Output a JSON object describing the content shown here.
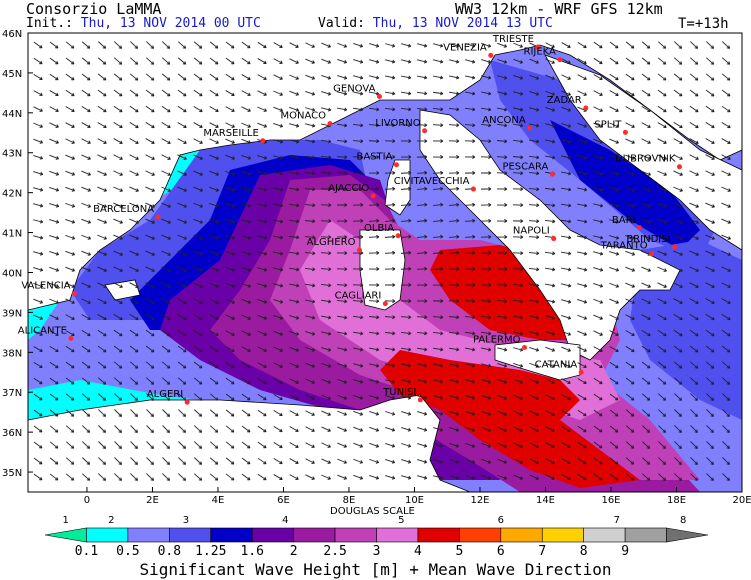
{
  "header": {
    "org": "Consorzio LaMMA",
    "init_label": "Init.:",
    "init_value": "Thu, 13 NOV 2014  00 UTC",
    "valid_label": "Valid:",
    "valid_value": "Thu, 13 NOV 2014  13 UTC",
    "model": "WW3 12km - WRF GFS 12km",
    "forecast_step": "T=+13h"
  },
  "axes": {
    "lat_labels": [
      "46N",
      "45N",
      "44N",
      "43N",
      "42N",
      "41N",
      "40N",
      "39N",
      "38N",
      "37N",
      "36N",
      "35N"
    ],
    "lon_labels": [
      "0",
      "2E",
      "4E",
      "6E",
      "8E",
      "10E",
      "12E",
      "14E",
      "16E",
      "18E",
      "20E"
    ]
  },
  "cities": [
    {
      "name": "TRIESTE",
      "lon": 13.77,
      "lat": 45.65
    },
    {
      "name": "VENEZIA",
      "lon": 12.33,
      "lat": 45.44
    },
    {
      "name": "RIJEKA",
      "lon": 14.44,
      "lat": 45.33
    },
    {
      "name": "GENOVA",
      "lon": 8.93,
      "lat": 44.41
    },
    {
      "name": "MONACO",
      "lon": 7.42,
      "lat": 43.73
    },
    {
      "name": "ZADAR",
      "lon": 15.23,
      "lat": 44.12
    },
    {
      "name": "MARSEILLE",
      "lon": 5.37,
      "lat": 43.3
    },
    {
      "name": "LIVORNO",
      "lon": 10.31,
      "lat": 43.55
    },
    {
      "name": "ANCONA",
      "lon": 13.52,
      "lat": 43.62
    },
    {
      "name": "SPLIT",
      "lon": 16.44,
      "lat": 43.51
    },
    {
      "name": "DUBROVNIK",
      "lon": 18.09,
      "lat": 42.65
    },
    {
      "name": "BASTIA",
      "lon": 9.45,
      "lat": 42.7
    },
    {
      "name": "PESCARA",
      "lon": 14.21,
      "lat": 42.46
    },
    {
      "name": "AJACCIO",
      "lon": 8.74,
      "lat": 41.92
    },
    {
      "name": "CIVITAVECCHIA",
      "lon": 11.8,
      "lat": 42.09
    },
    {
      "name": "BARCELONA",
      "lon": 2.17,
      "lat": 41.39
    },
    {
      "name": "OLBIA",
      "lon": 9.5,
      "lat": 40.92
    },
    {
      "name": "NAPOLI",
      "lon": 14.25,
      "lat": 40.85
    },
    {
      "name": "BARI",
      "lon": 16.87,
      "lat": 41.12
    },
    {
      "name": "BRINDISI",
      "lon": 17.94,
      "lat": 40.64
    },
    {
      "name": "ALGHERO",
      "lon": 8.32,
      "lat": 40.56
    },
    {
      "name": "TARANTO",
      "lon": 17.24,
      "lat": 40.47
    },
    {
      "name": "VALENCIA",
      "lon": -0.38,
      "lat": 39.47
    },
    {
      "name": "CAGLIARI",
      "lon": 9.11,
      "lat": 39.22
    },
    {
      "name": "ALICANTE",
      "lon": -0.49,
      "lat": 38.35
    },
    {
      "name": "PALERMO",
      "lon": 13.36,
      "lat": 38.12
    },
    {
      "name": "CATANIA",
      "lon": 15.09,
      "lat": 37.5
    },
    {
      "name": "TUNISI",
      "lon": 10.18,
      "lat": 36.81
    },
    {
      "name": "ALGERI",
      "lon": 3.06,
      "lat": 36.75
    }
  ],
  "legend": {
    "title": "Significant Wave Height [m] + Mean Wave Direction",
    "scale_name": "DOUGLAS SCALE",
    "douglas": [
      "1",
      "2",
      "3",
      "4",
      "5",
      "6",
      "7",
      "8"
    ],
    "values": [
      "0.1",
      "0.5",
      "0.8",
      "1.25",
      "1.6",
      "2",
      "2.5",
      "3",
      "4",
      "5",
      "6",
      "7",
      "8",
      "9"
    ],
    "colors": [
      "#00ee99",
      "#00ffff",
      "#8080ff",
      "#5050ee",
      "#0000c8",
      "#6a00a8",
      "#9a1aa0",
      "#c040b8",
      "#e070d8",
      "#e00000",
      "#ff4000",
      "#ffa800",
      "#ffd000",
      "#d0d0d0",
      "#a0a0a0",
      "#707070"
    ]
  },
  "colors": {
    "land": "#ffffff",
    "grid": "#000000",
    "city": "#ff2a2a"
  }
}
